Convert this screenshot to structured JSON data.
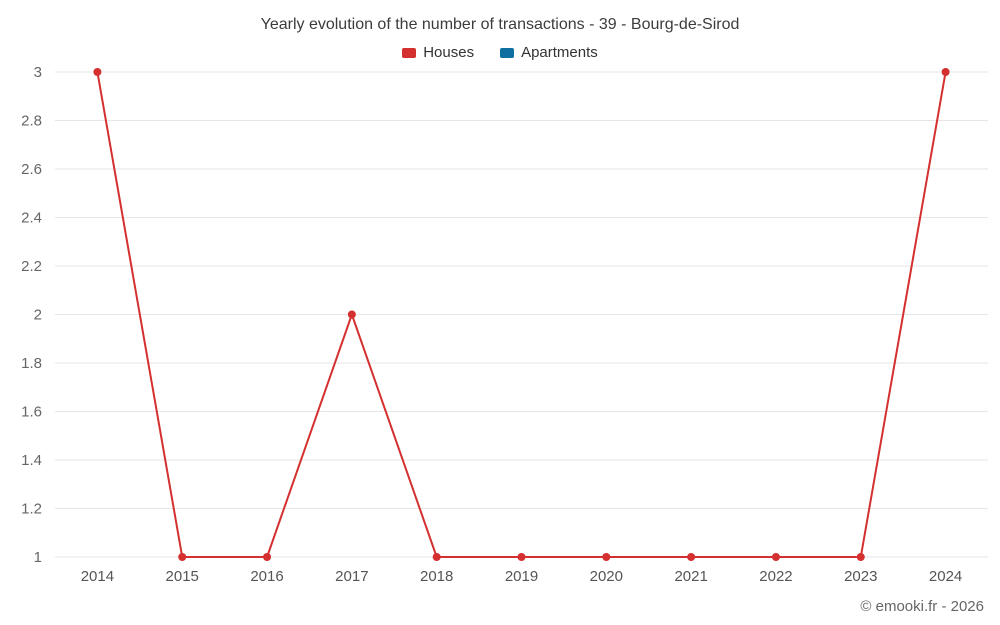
{
  "chart_data": {
    "type": "line",
    "title": "Yearly evolution of the number of transactions - 39 - Bourg-de-Sirod",
    "categories": [
      "2014",
      "2015",
      "2016",
      "2017",
      "2018",
      "2019",
      "2020",
      "2021",
      "2022",
      "2023",
      "2024"
    ],
    "series": [
      {
        "name": "Houses",
        "color": "#d4302f",
        "values": [
          3,
          1,
          1,
          2,
          1,
          1,
          1,
          1,
          1,
          1,
          3
        ]
      },
      {
        "name": "Apartments",
        "color": "#0f6f9f",
        "values": []
      }
    ],
    "ylim": [
      1,
      3
    ],
    "yticks": [
      "1",
      "1.2",
      "1.4",
      "1.6",
      "1.8",
      "2",
      "2.2",
      "2.4",
      "2.6",
      "2.8",
      "3"
    ],
    "grid": true,
    "grid_color": "#e6e6e6",
    "tick_label_color": "#666666",
    "xlabel": "",
    "ylabel": "",
    "legend_position": "top"
  },
  "footer": {
    "credit": "© emooki.fr - 2026"
  }
}
